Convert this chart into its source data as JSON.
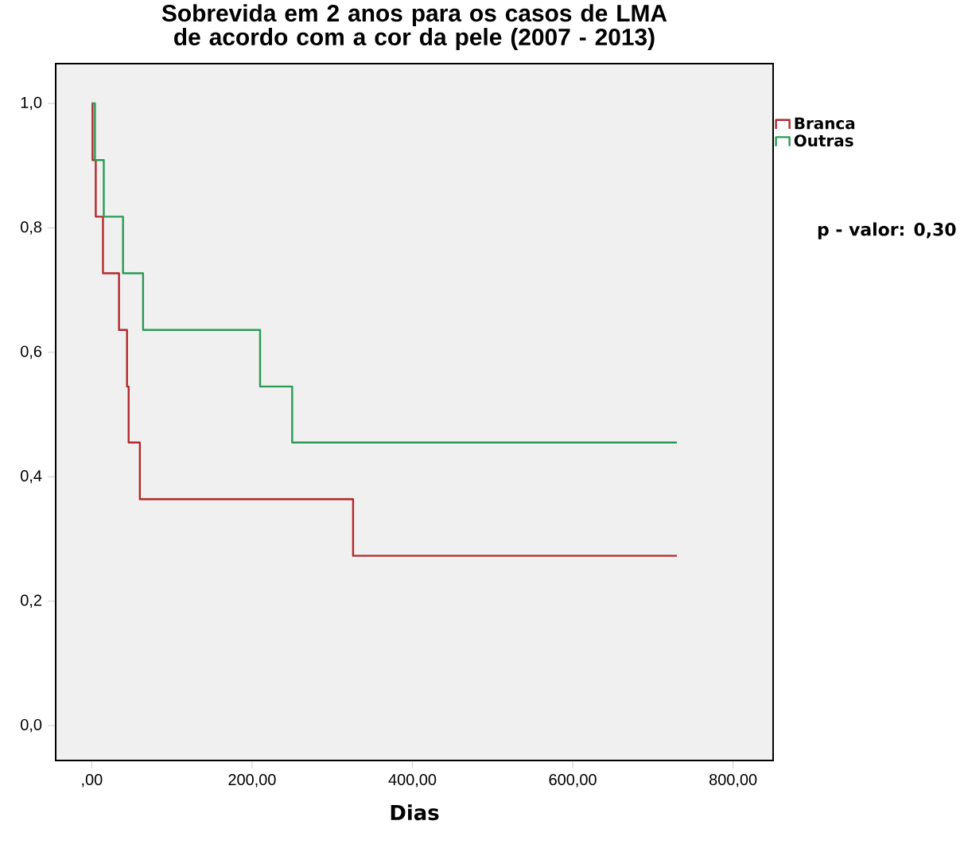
{
  "chart_data": {
    "type": "step",
    "title": "Sobrevida em 2 anos para os casos de LMA de acordo com a cor da pele (2007 - 2013)",
    "xlabel": "Dias",
    "series": [
      {
        "name": "Branca",
        "color": "#b3282d",
        "x": [
          0,
          1,
          5,
          14,
          34,
          44,
          46,
          60,
          326,
          730
        ],
        "values": [
          1.0,
          0.909,
          0.818,
          0.727,
          0.636,
          0.545,
          0.455,
          0.364,
          0.273,
          0.273
        ]
      },
      {
        "name": "Outras",
        "color": "#2a9a55",
        "x": [
          0,
          4,
          15,
          39,
          64,
          210,
          250,
          730
        ],
        "values": [
          1.0,
          0.909,
          0.818,
          0.727,
          0.636,
          0.545,
          0.455,
          0.455
        ]
      }
    ],
    "xlim": [
      -45,
      850
    ],
    "ylim": [
      -0.056,
      1.064
    ],
    "xticks": [
      {
        "value": 0,
        "label": ",00"
      },
      {
        "value": 200,
        "label": "200,00"
      },
      {
        "value": 400,
        "label": "400,00"
      },
      {
        "value": 600,
        "label": "600,00"
      },
      {
        "value": 800,
        "label": "800,00"
      }
    ],
    "yticks": [
      {
        "value": 0,
        "label": "0,0"
      },
      {
        "value": 0.2,
        "label": "0,2"
      },
      {
        "value": 0.4,
        "label": "0,4"
      },
      {
        "value": 0.6,
        "label": "0,6"
      },
      {
        "value": 0.8,
        "label": "0,8"
      },
      {
        "value": 1.0,
        "label": "1,0"
      }
    ],
    "grid": false,
    "legend": "top right",
    "marker": "none",
    "line_style": "solid",
    "annotations": [
      "p - valor: 0,30"
    ]
  }
}
